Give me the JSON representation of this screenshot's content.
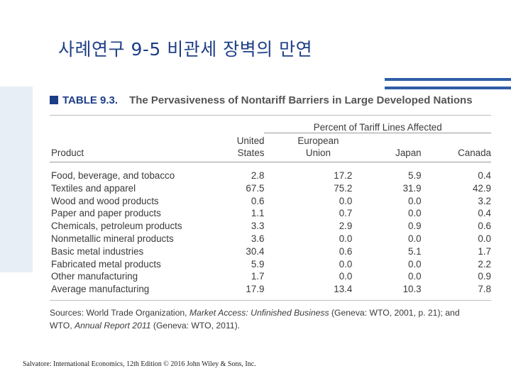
{
  "slide": {
    "title": "사례연구 9-5  비관세 장벽의 만연",
    "footer": "Salvatore: International Economics, 12th Edition © 2016 John Wiley & Sons, Inc."
  },
  "table": {
    "number": "TABLE 9.3.",
    "caption": "The Pervasiveness of Nontariff Barriers in Large Developed Nations",
    "group_header": "Percent of Tariff Lines Affected",
    "columns": {
      "product": "Product",
      "us_line1": "United",
      "us_line2": "States",
      "eu_line1": "European",
      "eu_line2": "Union",
      "japan": "Japan",
      "canada": "Canada"
    },
    "rows": [
      {
        "product": "Food, beverage, and tobacco",
        "us": "2.8",
        "eu": "17.2",
        "japan": "5.9",
        "canada": "0.4"
      },
      {
        "product": "Textiles and apparel",
        "us": "67.5",
        "eu": "75.2",
        "japan": "31.9",
        "canada": "42.9"
      },
      {
        "product": "Wood and wood products",
        "us": "0.6",
        "eu": "0.0",
        "japan": "0.0",
        "canada": "3.2"
      },
      {
        "product": "Paper and paper products",
        "us": "1.1",
        "eu": "0.7",
        "japan": "0.0",
        "canada": "0.4"
      },
      {
        "product": "Chemicals, petroleum products",
        "us": "3.3",
        "eu": "2.9",
        "japan": "0.9",
        "canada": "0.6"
      },
      {
        "product": "Nonmetallic mineral products",
        "us": "3.6",
        "eu": "0.0",
        "japan": "0.0",
        "canada": "0.0"
      },
      {
        "product": "Basic metal industries",
        "us": "30.4",
        "eu": "0.6",
        "japan": "5.1",
        "canada": "1.7"
      },
      {
        "product": "Fabricated metal products",
        "us": "5.9",
        "eu": "0.0",
        "japan": "0.0",
        "canada": "2.2"
      },
      {
        "product": "Other manufacturing",
        "us": "1.7",
        "eu": "0.0",
        "japan": "0.0",
        "canada": "0.9"
      },
      {
        "product": "Average manufacturing",
        "us": "17.9",
        "eu": "13.4",
        "japan": "10.3",
        "canada": "7.8"
      }
    ],
    "source": {
      "line1_a": "Sources: World Trade Organization, ",
      "line1_b": "Market Access: Unfinished Business",
      "line1_c": " (Geneva: WTO, 2001, p. 21); and",
      "line2_a": "WTO, ",
      "line2_b": "Annual Report 2011",
      "line2_c": " (Geneva: WTO, 2011)."
    }
  },
  "colors": {
    "title": "#1f3f87",
    "accent": "#2f5da8",
    "table_heading": "#1d3e87",
    "left_band": "#e8eef6"
  }
}
